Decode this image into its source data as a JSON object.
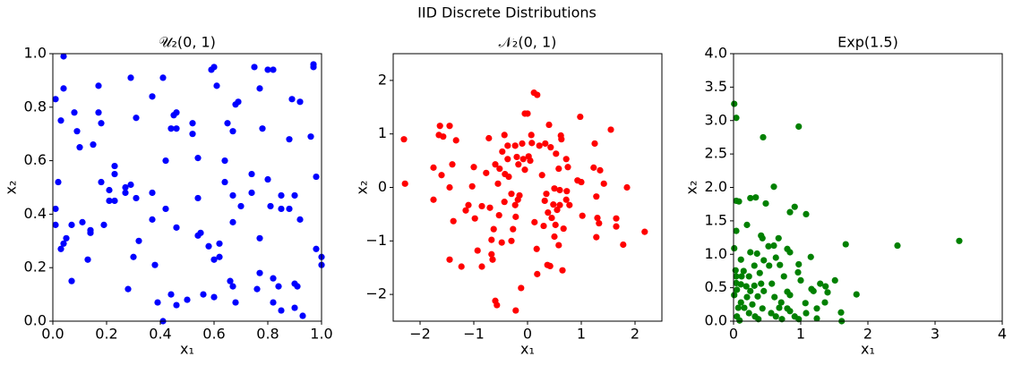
{
  "title": "IID Discrete Distributions",
  "chart_data": [
    {
      "type": "scatter",
      "title": "𝒰₂(0, 1)",
      "x_label": "x₁",
      "y_label": "x₂",
      "color": "#0000ff",
      "xlim": [
        0,
        1
      ],
      "ylim": [
        0,
        1
      ],
      "xticks": [
        {
          "value": 0,
          "label": "0.0"
        },
        0.2,
        0.4,
        0.6,
        0.8,
        {
          "value": 1,
          "label": "1.0"
        }
      ],
      "yticks": [
        {
          "value": 0,
          "label": "0.0"
        },
        0.2,
        0.4,
        0.6,
        0.8,
        {
          "value": 1,
          "label": "1.0"
        }
      ],
      "x": [
        0.04,
        0.01,
        0.04,
        0.03,
        0.08,
        0.09,
        0.1,
        0.02,
        0.01,
        0.01,
        0.03,
        0.04,
        0.05,
        0.07,
        0.07,
        0.11,
        0.14,
        0.14,
        0.13,
        0.15,
        0.17,
        0.17,
        0.18,
        0.18,
        0.19,
        0.21,
        0.21,
        0.23,
        0.23,
        0.23,
        0.27,
        0.27,
        0.29,
        0.29,
        0.31,
        0.31,
        0.3,
        0.32,
        0.28,
        0.37,
        0.37,
        0.37,
        0.38,
        0.39,
        0.41,
        0.42,
        0.42,
        0.41,
        0.44,
        0.45,
        0.46,
        0.46,
        0.46,
        0.44,
        0.46,
        0.5,
        0.52,
        0.52,
        0.54,
        0.54,
        0.54,
        0.55,
        0.56,
        0.58,
        0.59,
        0.6,
        0.61,
        0.6,
        0.6,
        0.62,
        0.62,
        0.64,
        0.64,
        0.65,
        0.67,
        0.66,
        0.67,
        0.67,
        0.67,
        0.68,
        0.68,
        0.69,
        0.7,
        0.74,
        0.74,
        0.75,
        0.76,
        0.77,
        0.77,
        0.77,
        0.78,
        0.8,
        0.8,
        0.82,
        0.81,
        0.82,
        0.82,
        0.84,
        0.85,
        0.85,
        0.85,
        0.88,
        0.88,
        0.89,
        0.9,
        0.9,
        0.9,
        0.91,
        0.92,
        0.92,
        0.93,
        0.96,
        0.97,
        0.97,
        0.98,
        0.98,
        1.0,
        1.0
      ],
      "y": [
        0.99,
        0.83,
        0.87,
        0.75,
        0.78,
        0.71,
        0.65,
        0.52,
        0.42,
        0.36,
        0.27,
        0.29,
        0.31,
        0.15,
        0.36,
        0.37,
        0.34,
        0.33,
        0.23,
        0.66,
        0.88,
        0.78,
        0.74,
        0.52,
        0.36,
        0.49,
        0.45,
        0.58,
        0.55,
        0.45,
        0.5,
        0.48,
        0.51,
        0.91,
        0.76,
        0.46,
        0.24,
        0.3,
        0.12,
        0.84,
        0.48,
        0.38,
        0.21,
        0.07,
        0.91,
        0.6,
        0.42,
        0.0,
        0.72,
        0.77,
        0.78,
        0.72,
        0.35,
        0.1,
        0.06,
        0.08,
        0.74,
        0.7,
        0.61,
        0.46,
        0.32,
        0.33,
        0.1,
        0.28,
        0.94,
        0.95,
        0.88,
        0.23,
        0.09,
        0.29,
        0.24,
        0.52,
        0.6,
        0.74,
        0.37,
        0.15,
        0.13,
        0.47,
        0.71,
        0.07,
        0.81,
        0.82,
        0.43,
        0.55,
        0.48,
        0.95,
        0.12,
        0.18,
        0.31,
        0.87,
        0.72,
        0.94,
        0.53,
        0.94,
        0.43,
        0.16,
        0.07,
        0.13,
        0.47,
        0.42,
        0.04,
        0.68,
        0.42,
        0.83,
        0.47,
        0.14,
        0.05,
        0.13,
        0.82,
        0.38,
        0.02,
        0.69,
        0.95,
        0.96,
        0.27,
        0.54,
        0.24,
        0.21
      ]
    },
    {
      "type": "scatter",
      "title": "𝒩₂(0, 1)",
      "x_label": "x₁",
      "y_label": "x₂",
      "color": "#ff0000",
      "xlim": [
        -2.5,
        2.5
      ],
      "ylim": [
        -2.5,
        2.5
      ],
      "xticks": [
        {
          "value": -2,
          "label": "−2"
        },
        {
          "value": -1,
          "label": "−1"
        },
        0,
        1,
        2
      ],
      "yticks": [
        {
          "value": -2,
          "label": "−2"
        },
        {
          "value": -1,
          "label": "−1"
        },
        0,
        1,
        2
      ],
      "x": [
        -2.3,
        -2.28,
        -1.63,
        -1.65,
        -1.57,
        -1.45,
        -1.33,
        -1.75,
        -1.75,
        -1.6,
        -1.45,
        -1.4,
        -1.38,
        -1.45,
        -1.23,
        -1.15,
        -1.1,
        -1.03,
        -1.0,
        -0.98,
        -0.93,
        -0.85,
        -0.85,
        -0.77,
        -0.72,
        -0.7,
        -0.67,
        -0.67,
        -0.65,
        -0.63,
        -0.6,
        -0.57,
        -0.6,
        -0.55,
        -0.53,
        -0.52,
        -0.48,
        -0.47,
        -0.43,
        -0.42,
        -0.43,
        -0.37,
        -0.37,
        -0.35,
        -0.3,
        -0.3,
        -0.27,
        -0.23,
        -0.23,
        -0.22,
        -0.22,
        -0.2,
        -0.18,
        -0.17,
        -0.15,
        -0.12,
        -0.1,
        -0.08,
        -0.05,
        -0.05,
        0,
        0.02,
        0.05,
        0.07,
        0.08,
        0.12,
        0.18,
        0.13,
        0.17,
        0.18,
        0.22,
        0.27,
        0.3,
        0.32,
        0.33,
        0.35,
        0.37,
        0.38,
        0.4,
        0.42,
        0.43,
        0.45,
        0.48,
        0.5,
        0.5,
        0.52,
        0.53,
        0.55,
        0.58,
        0.58,
        0.6,
        0.6,
        0.62,
        0.63,
        0.65,
        0.67,
        0.72,
        0.75,
        0.73,
        0.72,
        0.78,
        0.93,
        0.98,
        1.0,
        1.02,
        1.23,
        1.25,
        1.28,
        1.28,
        1.3,
        1.33,
        1.35,
        1.42,
        1.55,
        1.65,
        1.65,
        1.78,
        1.85,
        2.18
      ],
      "y": [
        0.9,
        0.07,
        1.15,
        0.98,
        0.95,
        1.15,
        0.88,
        0.37,
        -0.23,
        0.23,
        0,
        0.43,
        -0.63,
        -1.35,
        -1.48,
        -0.43,
        -0.33,
        0.02,
        0.38,
        -0.58,
        -1.18,
        -0.35,
        -1.48,
        0.27,
        0.92,
        -0.38,
        -0.98,
        -1.25,
        -1.35,
        -0.78,
        -2.12,
        -2.2,
        0.43,
        0.07,
        -0.52,
        0.35,
        -1.03,
        0.67,
        0.98,
        0.25,
        -0.27,
        0.78,
        0.53,
        0.2,
        -0.12,
        -1.0,
        -0.78,
        0.78,
        -0.33,
        -0.55,
        -2.3,
        0.57,
        -0.23,
        0.43,
        -0.15,
        -1.88,
        0.82,
        0.53,
        0.33,
        1.38,
        1.38,
        0.58,
        0.5,
        0.98,
        0.83,
        1.77,
        1.73,
        -0.65,
        -1.15,
        -1.62,
        0.78,
        0.23,
        -0.72,
        -0.25,
        0.82,
        -0.12,
        -1.45,
        -0.47,
        1.17,
        -1.47,
        0.75,
        -0.57,
        -0.32,
        -0.02,
        -0.92,
        -0.7,
        0.63,
        -0.42,
        0.35,
        -1.08,
        -0.05,
        -0.33,
        0.97,
        0.9,
        -1.55,
        -0.77,
        0.53,
        0.38,
        -0.07,
        -0.23,
        -0.33,
        0.13,
        1.32,
        0.1,
        -0.53,
        0.37,
        0.82,
        -0.17,
        -0.93,
        -0.57,
        -0.67,
        0.32,
        0.07,
        1.08,
        -0.58,
        -0.73,
        -1.07,
        0,
        -0.83
      ]
    },
    {
      "type": "scatter",
      "title": "Exp(1.5)",
      "x_label": "x₁",
      "y_label": "x₂",
      "color": "#008000",
      "xlim": [
        0,
        4
      ],
      "ylim": [
        0,
        4
      ],
      "xticks": [
        0,
        1,
        2,
        3,
        4
      ],
      "yticks": [
        {
          "value": 0,
          "label": "0.0"
        },
        0.5,
        {
          "value": 1,
          "label": "1.0"
        },
        1.5,
        {
          "value": 2,
          "label": "2.0"
        },
        2.5,
        {
          "value": 3,
          "label": "3.0"
        },
        3.5,
        {
          "value": 4,
          "label": "4.0"
        }
      ],
      "x": [
        0.01,
        0.04,
        0.44,
        0.97,
        0.04,
        0.08,
        0.25,
        0.33,
        0.6,
        0.48,
        0.84,
        0.91,
        1.08,
        0.2,
        0.41,
        0.43,
        0.67,
        0.04,
        0.52,
        0.6,
        0.8,
        0.84,
        1.67,
        2.44,
        3.36,
        1.15,
        0.01,
        0.25,
        0.35,
        0.11,
        0.45,
        0.63,
        0.31,
        0.53,
        0.69,
        0.97,
        0.03,
        0.15,
        0.39,
        0.04,
        0.12,
        0.23,
        0.75,
        0.96,
        1.0,
        1.51,
        0.04,
        0.11,
        0.19,
        0.31,
        0.41,
        0.57,
        1.29,
        1.37,
        0.05,
        0.25,
        0.45,
        0.8,
        1.16,
        1.19,
        1.4,
        1.83,
        0.01,
        0.2,
        0.36,
        0.61,
        0.84,
        0.11,
        0.28,
        0.71,
        1.07,
        1.36,
        0.07,
        0.16,
        0.43,
        0.68,
        0.8,
        1.24,
        0.23,
        0.56,
        0.84,
        1.08,
        1.6,
        0.05,
        0.32,
        0.63,
        0.91,
        0.09,
        0.37,
        0.72,
        0.97,
        1.24,
        1.61
      ],
      "y": [
        3.25,
        3.04,
        2.75,
        2.91,
        1.8,
        1.79,
        1.84,
        1.85,
        2.01,
        1.76,
        1.63,
        1.71,
        1.6,
        1.44,
        1.28,
        1.24,
        1.24,
        1.35,
        1.12,
        1.13,
        1.08,
        1.03,
        1.15,
        1.13,
        1.2,
        0.96,
        1.09,
        1.03,
        1.01,
        0.92,
        0.91,
        0.95,
        0.83,
        0.83,
        0.84,
        0.85,
        0.76,
        0.75,
        0.72,
        0.67,
        0.67,
        0.67,
        0.67,
        0.73,
        0.61,
        0.61,
        0.57,
        0.55,
        0.52,
        0.53,
        0.56,
        0.56,
        0.56,
        0.52,
        0.47,
        0.45,
        0.45,
        0.44,
        0.48,
        0.45,
        0.43,
        0.4,
        0.39,
        0.36,
        0.37,
        0.36,
        0.39,
        0.28,
        0.25,
        0.28,
        0.27,
        0.28,
        0.2,
        0.2,
        0.19,
        0.2,
        0.19,
        0.19,
        0.12,
        0.12,
        0.15,
        0.12,
        0.13,
        0.07,
        0.07,
        0.07,
        0.07,
        0.01,
        0.03,
        0.03,
        0.03,
        0.04,
        0.0
      ]
    }
  ]
}
